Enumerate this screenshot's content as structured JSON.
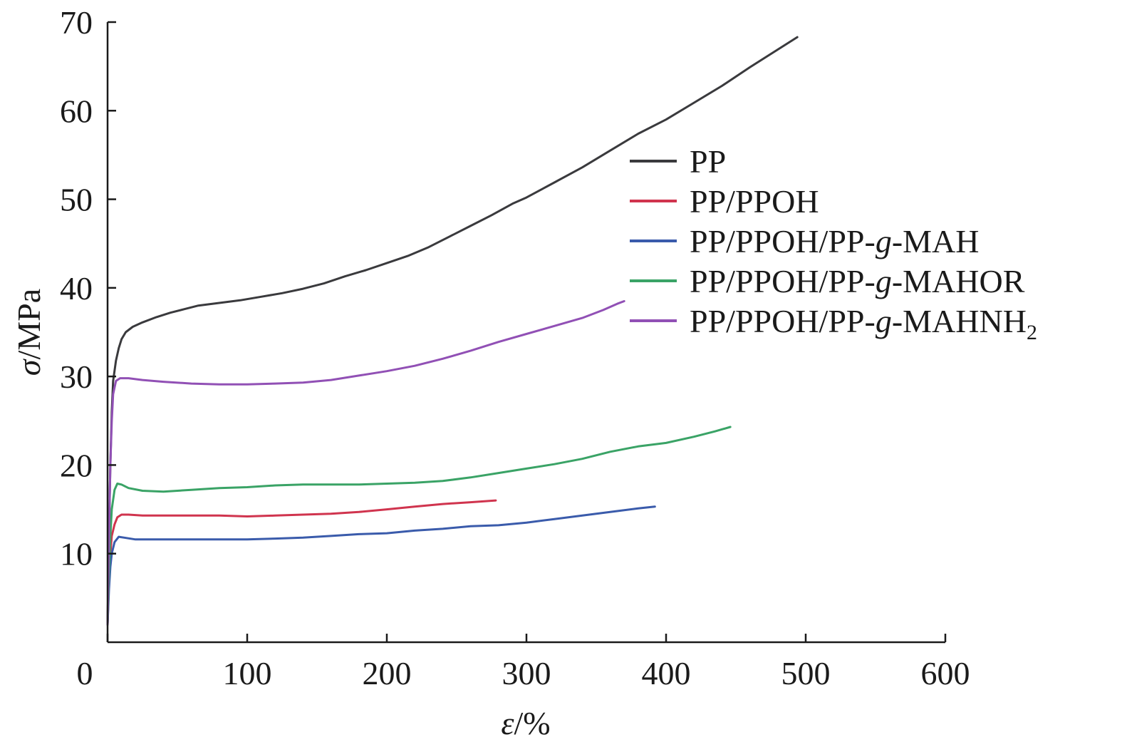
{
  "chart_data": {
    "type": "line",
    "title": "",
    "xlabel": "ε/%",
    "ylabel": "σ/MPa",
    "xlim": [
      0,
      600
    ],
    "ylim": [
      0,
      70
    ],
    "x_ticks": [
      0,
      100,
      200,
      300,
      400,
      500,
      600
    ],
    "y_ticks": [
      10,
      20,
      30,
      40,
      50,
      60,
      70
    ],
    "x_tick_labels": [
      "0",
      "100",
      "200",
      "300",
      "400",
      "500",
      "600"
    ],
    "y_tick_labels": [
      "10",
      "20",
      "30",
      "40",
      "50",
      "60",
      "70"
    ],
    "grid": false,
    "legend_position": "upper-right",
    "series": [
      {
        "name": "PP",
        "legend_prefix": "PP",
        "legend_italic": "",
        "legend_suffix": "",
        "legend_sub": "",
        "color": "#3a3a3d",
        "points": [
          [
            0,
            2
          ],
          [
            1,
            12
          ],
          [
            2,
            20
          ],
          [
            3,
            26
          ],
          [
            4,
            29.5
          ],
          [
            6,
            31.8
          ],
          [
            8,
            33.2
          ],
          [
            10,
            34.2
          ],
          [
            13,
            35
          ],
          [
            18,
            35.6
          ],
          [
            25,
            36.1
          ],
          [
            35,
            36.7
          ],
          [
            45,
            37.2
          ],
          [
            55,
            37.6
          ],
          [
            65,
            38
          ],
          [
            75,
            38.2
          ],
          [
            85,
            38.4
          ],
          [
            95,
            38.6
          ],
          [
            110,
            39
          ],
          [
            125,
            39.4
          ],
          [
            140,
            39.9
          ],
          [
            155,
            40.5
          ],
          [
            170,
            41.3
          ],
          [
            185,
            42
          ],
          [
            200,
            42.8
          ],
          [
            215,
            43.6
          ],
          [
            230,
            44.6
          ],
          [
            245,
            45.8
          ],
          [
            260,
            47
          ],
          [
            275,
            48.2
          ],
          [
            290,
            49.5
          ],
          [
            300,
            50.2
          ],
          [
            320,
            51.9
          ],
          [
            340,
            53.6
          ],
          [
            360,
            55.5
          ],
          [
            380,
            57.4
          ],
          [
            400,
            59
          ],
          [
            420,
            60.9
          ],
          [
            440,
            62.8
          ],
          [
            460,
            64.9
          ],
          [
            480,
            66.9
          ],
          [
            494,
            68.3
          ]
        ]
      },
      {
        "name": "PP/PPOH",
        "legend_prefix": "PP/PPOH",
        "legend_italic": "",
        "legend_suffix": "",
        "legend_sub": "",
        "color": "#d0344e",
        "points": [
          [
            0,
            2
          ],
          [
            1,
            7
          ],
          [
            2,
            10
          ],
          [
            3,
            12
          ],
          [
            5,
            13.3
          ],
          [
            7,
            14.1
          ],
          [
            10,
            14.4
          ],
          [
            15,
            14.4
          ],
          [
            25,
            14.3
          ],
          [
            40,
            14.3
          ],
          [
            60,
            14.3
          ],
          [
            80,
            14.3
          ],
          [
            100,
            14.2
          ],
          [
            120,
            14.3
          ],
          [
            140,
            14.4
          ],
          [
            160,
            14.5
          ],
          [
            180,
            14.7
          ],
          [
            200,
            15
          ],
          [
            220,
            15.3
          ],
          [
            240,
            15.6
          ],
          [
            260,
            15.8
          ],
          [
            278,
            16
          ]
        ]
      },
      {
        "name": "PP/PPOH/PP-g-MAH",
        "legend_prefix": "PP/PPOH/PP-",
        "legend_italic": "g",
        "legend_suffix": "-MAH",
        "legend_sub": "",
        "color": "#3a5bab",
        "points": [
          [
            0,
            2
          ],
          [
            1,
            6
          ],
          [
            2,
            8.5
          ],
          [
            3,
            10
          ],
          [
            5,
            11.3
          ],
          [
            8,
            11.9
          ],
          [
            12,
            11.8
          ],
          [
            20,
            11.6
          ],
          [
            40,
            11.6
          ],
          [
            60,
            11.6
          ],
          [
            80,
            11.6
          ],
          [
            100,
            11.6
          ],
          [
            120,
            11.7
          ],
          [
            140,
            11.8
          ],
          [
            160,
            12
          ],
          [
            180,
            12.2
          ],
          [
            200,
            12.3
          ],
          [
            220,
            12.6
          ],
          [
            240,
            12.8
          ],
          [
            260,
            13.1
          ],
          [
            280,
            13.2
          ],
          [
            300,
            13.5
          ],
          [
            320,
            13.9
          ],
          [
            340,
            14.3
          ],
          [
            360,
            14.7
          ],
          [
            380,
            15.1
          ],
          [
            392,
            15.3
          ]
        ]
      },
      {
        "name": "PP/PPOH/PP-g-MAHOR",
        "legend_prefix": "PP/PPOH/PP-",
        "legend_italic": "g",
        "legend_suffix": "-MAHOR",
        "legend_sub": "",
        "color": "#3aa366",
        "points": [
          [
            0,
            2
          ],
          [
            1,
            8
          ],
          [
            2,
            12
          ],
          [
            3,
            15
          ],
          [
            5,
            17.2
          ],
          [
            7,
            17.9
          ],
          [
            10,
            17.8
          ],
          [
            15,
            17.4
          ],
          [
            25,
            17.1
          ],
          [
            40,
            17
          ],
          [
            60,
            17.2
          ],
          [
            80,
            17.4
          ],
          [
            100,
            17.5
          ],
          [
            120,
            17.7
          ],
          [
            140,
            17.8
          ],
          [
            160,
            17.8
          ],
          [
            180,
            17.8
          ],
          [
            200,
            17.9
          ],
          [
            220,
            18
          ],
          [
            240,
            18.2
          ],
          [
            260,
            18.6
          ],
          [
            280,
            19.1
          ],
          [
            300,
            19.6
          ],
          [
            320,
            20.1
          ],
          [
            340,
            20.7
          ],
          [
            360,
            21.5
          ],
          [
            380,
            22.1
          ],
          [
            400,
            22.5
          ],
          [
            420,
            23.2
          ],
          [
            435,
            23.8
          ],
          [
            446,
            24.3
          ]
        ]
      },
      {
        "name": "PP/PPOH/PP-g-MAHNH2",
        "legend_prefix": "PP/PPOH/PP-",
        "legend_italic": "g",
        "legend_suffix": "-MAHNH",
        "legend_sub": "2",
        "color": "#9150b5",
        "points": [
          [
            0,
            2
          ],
          [
            1,
            12
          ],
          [
            2,
            20
          ],
          [
            3,
            25
          ],
          [
            4,
            28
          ],
          [
            6,
            29.5
          ],
          [
            9,
            29.8
          ],
          [
            15,
            29.8
          ],
          [
            25,
            29.6
          ],
          [
            40,
            29.4
          ],
          [
            60,
            29.2
          ],
          [
            80,
            29.1
          ],
          [
            100,
            29.1
          ],
          [
            120,
            29.2
          ],
          [
            140,
            29.3
          ],
          [
            160,
            29.6
          ],
          [
            180,
            30.1
          ],
          [
            200,
            30.6
          ],
          [
            220,
            31.2
          ],
          [
            240,
            32
          ],
          [
            260,
            32.9
          ],
          [
            280,
            33.9
          ],
          [
            300,
            34.8
          ],
          [
            320,
            35.7
          ],
          [
            340,
            36.6
          ],
          [
            355,
            37.5
          ],
          [
            365,
            38.2
          ],
          [
            370,
            38.5
          ]
        ]
      }
    ]
  }
}
